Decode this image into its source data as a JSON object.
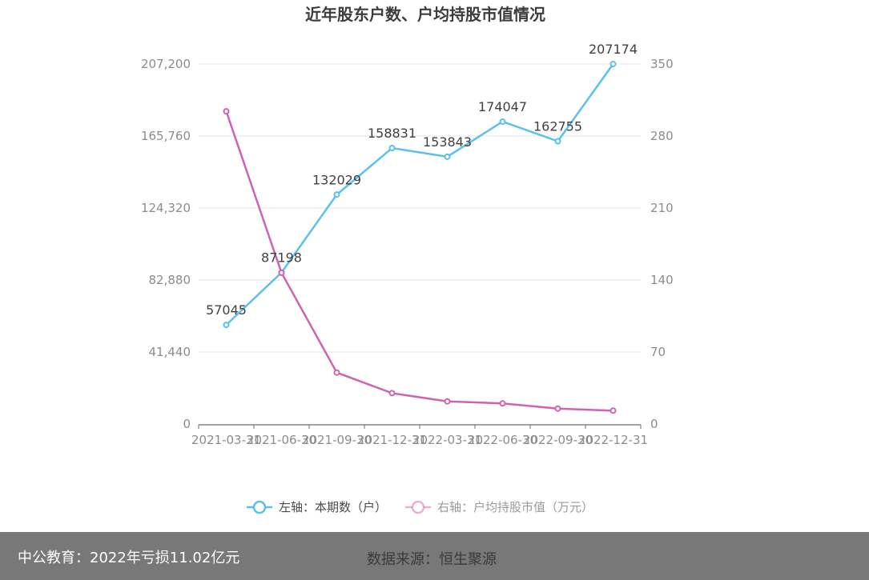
{
  "chart_data": {
    "type": "line",
    "title": "近年股东户数、户均持股市值情况",
    "categories": [
      "2021-03-31",
      "2021-06-30",
      "2021-09-30",
      "2021-12-31",
      "2022-03-31",
      "2022-06-30",
      "2022-09-30",
      "2022-12-31"
    ],
    "left_axis": {
      "min": 0,
      "max": 207200,
      "ticks": [
        "0",
        "41,440",
        "82,880",
        "124,320",
        "165,760",
        "207,200"
      ]
    },
    "right_axis": {
      "min": 0,
      "max": 350,
      "ticks": [
        "0",
        "70",
        "140",
        "210",
        "280",
        "350"
      ]
    },
    "grid": true,
    "legend_position": "bottom",
    "series": [
      {
        "name": "左轴：本期数（户）",
        "axis": "left",
        "color": "#5bc0ec",
        "values": [
          57045,
          87198,
          132029,
          158831,
          153843,
          174047,
          162755,
          207174
        ],
        "labels": [
          "57045",
          "87198",
          "132029",
          "158831",
          "153843",
          "174047",
          "162755",
          "207174"
        ]
      },
      {
        "name": "右轴：户均持股市值（万元）",
        "axis": "right",
        "color": "#d063b0",
        "values": [
          304,
          147,
          50,
          30,
          22,
          20,
          15,
          13
        ]
      }
    ]
  },
  "footer": {
    "left": "中公教育：2022年亏损11.02亿元",
    "right": "数据来源：恒生聚源"
  }
}
